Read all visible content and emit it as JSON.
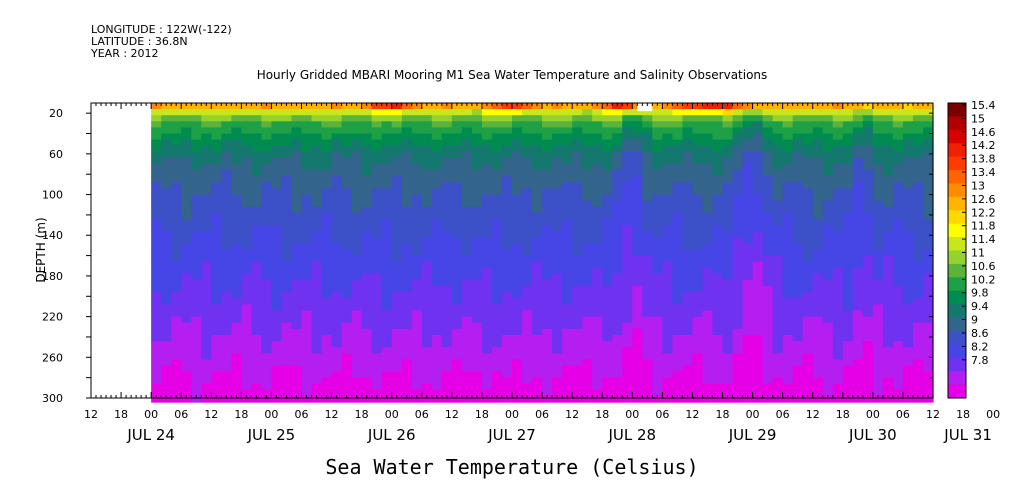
{
  "meta": {
    "longitude": "LONGITUDE : 122W(-122)",
    "latitude": "LATITUDE : 36.8N",
    "year": "YEAR : 2012"
  },
  "chart_data": {
    "type": "heatmap",
    "title": "Hourly Gridded MBARI Mooring M1 Sea Water Temperature and Salinity Observations",
    "xlabel": "Sea Water Temperature (Celsius)",
    "ylabel": "DEPTH (m)",
    "x_ticks": [
      "12",
      "18",
      "00",
      "06",
      "12",
      "18",
      "00",
      "06",
      "12",
      "18",
      "00",
      "06",
      "12",
      "18",
      "00",
      "06",
      "12",
      "18",
      "00",
      "06",
      "12",
      "18",
      "00",
      "06",
      "12",
      "18",
      "00",
      "06",
      "12",
      "18",
      "00",
      "06",
      "12"
    ],
    "x_date_labels": [
      {
        "label": "JUL 24",
        "hour": 12
      },
      {
        "label": "JUL 25",
        "hour": 36
      },
      {
        "label": "JUL 26",
        "hour": 60
      },
      {
        "label": "JUL 27",
        "hour": 84
      },
      {
        "label": "JUL 28",
        "hour": 108
      },
      {
        "label": "JUL 29",
        "hour": 132
      },
      {
        "label": "JUL 30",
        "hour": 156
      },
      {
        "label": "JUL 31",
        "hour": 175
      }
    ],
    "x_range": [
      "2012-07-24 12:00",
      "2012-07-31 12:00"
    ],
    "data_start": "2012-07-25 00:00",
    "y_ticks": [
      20,
      60,
      100,
      140,
      180,
      220,
      260,
      300
    ],
    "y_range": [
      10,
      300
    ],
    "y_inverted": true,
    "colorbar_labels": [
      "15.4",
      "15",
      "14.6",
      "14.2",
      "13.8",
      "13.4",
      "13",
      "12.6",
      "12.2",
      "11.8",
      "11.4",
      "11",
      "10.6",
      "10.2",
      "9.8",
      "9.4",
      "9",
      "8.6",
      "8.2",
      "7.8"
    ],
    "colorbar_colors": [
      "#7a0000",
      "#b00000",
      "#d80000",
      "#f02000",
      "#ff3c00",
      "#ff6400",
      "#ff8c00",
      "#ffb400",
      "#ffd800",
      "#ffff00",
      "#c8e61e",
      "#96d22d",
      "#5ab43c",
      "#1ea046",
      "#008c50",
      "#14786e",
      "#32648c",
      "#3c50c8",
      "#4646e6",
      "#6e32f0",
      "#b41ef0",
      "#e600e6"
    ],
    "value_range": [
      7.8,
      15.4
    ],
    "depth_profile": [
      {
        "depth": 10,
        "temp": 13.6
      },
      {
        "depth": 14,
        "temp": 12.6
      },
      {
        "depth": 20,
        "temp": 11.6
      },
      {
        "depth": 30,
        "temp": 10.9
      },
      {
        "depth": 45,
        "temp": 10.4
      },
      {
        "depth": 60,
        "temp": 10.0
      },
      {
        "depth": 80,
        "temp": 9.7
      },
      {
        "depth": 100,
        "temp": 9.5
      },
      {
        "depth": 140,
        "temp": 9.2
      },
      {
        "depth": 180,
        "temp": 8.9
      },
      {
        "depth": 220,
        "temp": 8.6
      },
      {
        "depth": 260,
        "temp": 8.3
      },
      {
        "depth": 300,
        "temp": 7.95
      }
    ],
    "surface_warm_events": [
      {
        "hour_start": 54,
        "hour_end": 66,
        "peak": 15.0
      },
      {
        "hour_start": 78,
        "hour_end": 90,
        "peak": 14.8
      },
      {
        "hour_start": 100,
        "hour_end": 112,
        "peak": 15.2
      },
      {
        "hour_start": 114,
        "hour_end": 136,
        "peak": 15.3
      },
      {
        "hour_start": 160,
        "hour_end": 166,
        "peak": 13.2
      }
    ],
    "upwelling_events": [
      {
        "hour": 108,
        "width": 4,
        "delta": 0.5
      },
      {
        "hour": 132,
        "width": 5,
        "delta": 0.6
      },
      {
        "hour": 154,
        "width": 3,
        "delta": 0.4
      }
    ],
    "missing_patch": {
      "hour_start": 110,
      "hour_end": 111,
      "depth_start": 10,
      "depth_end": 18
    }
  }
}
